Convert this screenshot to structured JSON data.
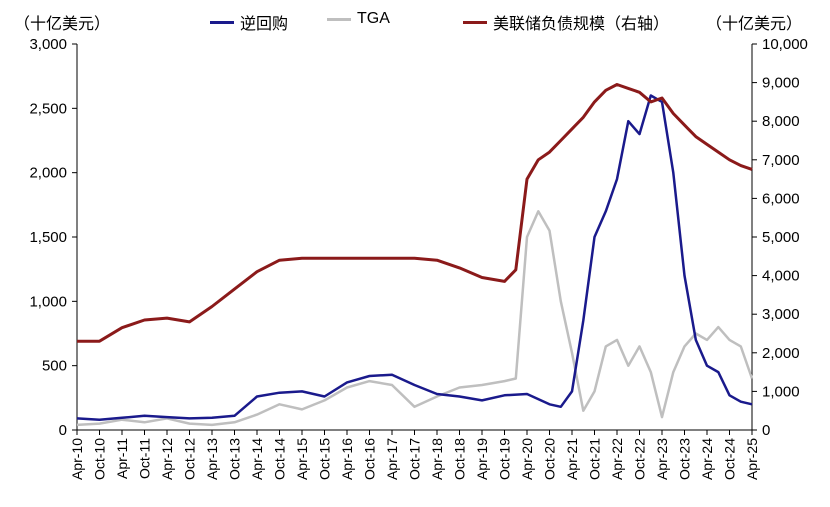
{
  "units": {
    "left": "（十亿美元）",
    "right": "（十亿美元）"
  },
  "legend": [
    {
      "label": "逆回购",
      "color": "#1a1a8c"
    },
    {
      "label": "TGA",
      "color": "#bfbfbf"
    },
    {
      "label": "美联储负债规模（右轴）",
      "color": "#8b1a1a"
    }
  ],
  "chart_data": {
    "type": "line",
    "title": "",
    "xlabel": "",
    "ylabel": "",
    "x_ticks": [
      "Apr-10",
      "Oct-10",
      "Apr-11",
      "Oct-11",
      "Apr-12",
      "Oct-12",
      "Apr-13",
      "Oct-13",
      "Apr-14",
      "Oct-14",
      "Apr-15",
      "Oct-15",
      "Apr-16",
      "Oct-16",
      "Apr-17",
      "Oct-17",
      "Apr-18",
      "Oct-18",
      "Apr-19",
      "Oct-19",
      "Apr-20",
      "Oct-20",
      "Apr-21",
      "Oct-21",
      "Apr-22",
      "Oct-22",
      "Apr-23",
      "Oct-23",
      "Apr-24",
      "Oct-24",
      "Apr-25"
    ],
    "y_left": {
      "min": 0,
      "max": 3000,
      "ticks": [
        "0",
        "500",
        "1,000",
        "1,500",
        "2,000",
        "2,500",
        "3,000"
      ]
    },
    "y_right": {
      "min": 0,
      "max": 10000,
      "ticks": [
        "0",
        "1,000",
        "2,000",
        "3,000",
        "4,000",
        "5,000",
        "6,000",
        "7,000",
        "8,000",
        "9,000",
        "10,000"
      ]
    },
    "grid": false,
    "legend_position": "top",
    "series": [
      {
        "name": "逆回购",
        "axis": "left",
        "color": "#1a1a8c",
        "x": [
          2010.25,
          2010.75,
          2011.25,
          2011.75,
          2012.25,
          2012.75,
          2013.25,
          2013.75,
          2014.25,
          2014.75,
          2015.25,
          2015.75,
          2016.25,
          2016.75,
          2017.25,
          2017.75,
          2018.25,
          2018.75,
          2019.25,
          2019.75,
          2020.25,
          2020.75,
          2021.0,
          2021.25,
          2021.5,
          2021.75,
          2022.0,
          2022.25,
          2022.5,
          2022.75,
          2023.0,
          2023.25,
          2023.5,
          2023.75,
          2024.0,
          2024.25,
          2024.5,
          2024.75,
          2025.0,
          2025.25
        ],
        "y": [
          90,
          80,
          95,
          110,
          100,
          90,
          95,
          110,
          260,
          290,
          300,
          260,
          370,
          420,
          430,
          350,
          280,
          260,
          230,
          270,
          280,
          200,
          180,
          300,
          850,
          1500,
          1700,
          1950,
          2400,
          2300,
          2600,
          2550,
          2000,
          1200,
          700,
          500,
          450,
          270,
          220,
          200
        ]
      },
      {
        "name": "TGA",
        "axis": "left",
        "color": "#bfbfbf",
        "x": [
          2010.25,
          2010.75,
          2011.25,
          2011.75,
          2012.25,
          2012.75,
          2013.25,
          2013.75,
          2014.25,
          2014.75,
          2015.25,
          2015.75,
          2016.25,
          2016.75,
          2017.25,
          2017.75,
          2018.25,
          2018.75,
          2019.25,
          2019.75,
          2020.0,
          2020.25,
          2020.5,
          2020.75,
          2021.0,
          2021.25,
          2021.5,
          2021.75,
          2022.0,
          2022.25,
          2022.5,
          2022.75,
          2023.0,
          2023.25,
          2023.5,
          2023.75,
          2024.0,
          2024.25,
          2024.5,
          2024.75,
          2025.0,
          2025.25
        ],
        "y": [
          40,
          50,
          80,
          60,
          90,
          50,
          40,
          60,
          120,
          200,
          160,
          230,
          330,
          380,
          350,
          180,
          260,
          330,
          350,
          380,
          400,
          1500,
          1700,
          1550,
          1000,
          600,
          150,
          300,
          650,
          700,
          500,
          650,
          450,
          100,
          450,
          650,
          750,
          700,
          800,
          700,
          650,
          400
        ]
      },
      {
        "name": "美联储负债规模（右轴）",
        "axis": "right",
        "color": "#8b1a1a",
        "x": [
          2010.25,
          2010.75,
          2011.25,
          2011.75,
          2012.25,
          2012.75,
          2013.25,
          2013.75,
          2014.25,
          2014.75,
          2015.25,
          2015.75,
          2016.25,
          2016.75,
          2017.25,
          2017.75,
          2018.25,
          2018.75,
          2019.25,
          2019.75,
          2020.0,
          2020.25,
          2020.5,
          2020.75,
          2021.0,
          2021.25,
          2021.5,
          2021.75,
          2022.0,
          2022.25,
          2022.5,
          2022.75,
          2023.0,
          2023.25,
          2023.5,
          2023.75,
          2024.0,
          2024.25,
          2024.5,
          2024.75,
          2025.0,
          2025.25
        ],
        "y": [
          2300,
          2300,
          2650,
          2850,
          2900,
          2800,
          3200,
          3650,
          4100,
          4400,
          4450,
          4450,
          4450,
          4450,
          4450,
          4450,
          4400,
          4200,
          3950,
          3850,
          4150,
          6500,
          7000,
          7200,
          7500,
          7800,
          8100,
          8500,
          8800,
          8950,
          8850,
          8750,
          8500,
          8600,
          8200,
          7900,
          7600,
          7400,
          7200,
          7000,
          6850,
          6750
        ]
      }
    ]
  }
}
